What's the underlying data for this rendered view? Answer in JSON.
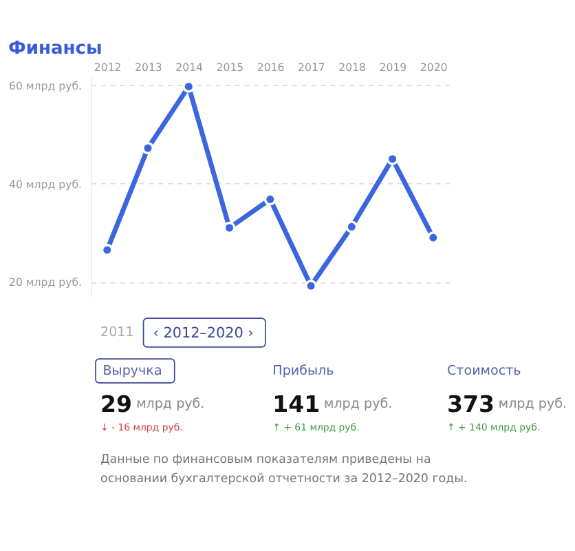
{
  "chart_data": {
    "type": "line",
    "title": "Финансы",
    "categories": [
      "2012",
      "2013",
      "2014",
      "2015",
      "2016",
      "2017",
      "2018",
      "2019",
      "2020"
    ],
    "series": [
      {
        "color": "#3b66e0",
        "values": [
          26.5,
          47.2,
          59.7,
          31,
          36.8,
          19.2,
          31.2,
          45,
          29
        ]
      }
    ],
    "ylim": [
      17,
      62
    ],
    "yticks": [
      {
        "value": 20,
        "label": "20 млрд руб."
      },
      {
        "value": 40,
        "label": "40 млрд руб."
      },
      {
        "value": 60,
        "label": "60 млрд руб."
      }
    ],
    "grid": "y",
    "marker": "circle",
    "annotations": [
      "2011",
      "‹   2012–2020   ›",
      "Выручка",
      "Прибыль",
      "Стоимость",
      "29",
      "млрд руб.",
      "141",
      "млрд руб.",
      "373",
      "млрд руб.",
      "↓ - 16 млрд руб.",
      "↑ + 61 млрд руб.",
      "↑ + 140 млрд руб.",
      "Данные по финансовым показателям приведены на",
      "основании бухгалтерской отчетности за 2012–2020 годы."
    ]
  }
}
